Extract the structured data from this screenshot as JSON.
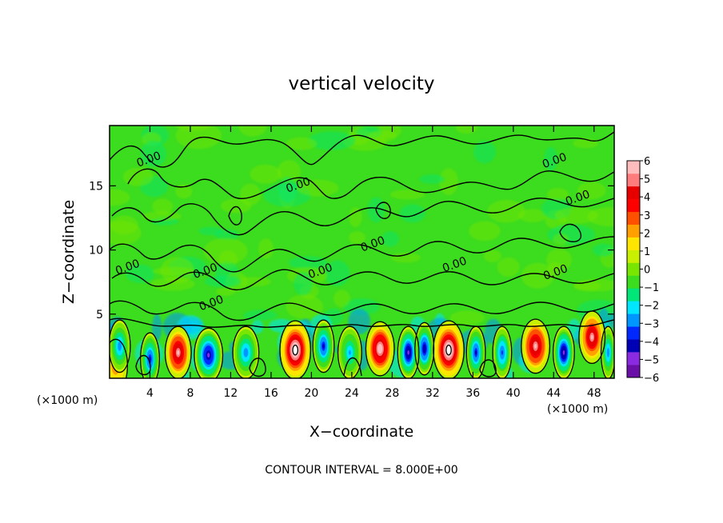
{
  "chart_data": {
    "type": "heatmap",
    "title": "vertical velocity",
    "xlabel": "X−coordinate",
    "ylabel": "Z−coordinate",
    "x_unit_label": "(×1000 m)",
    "y_unit_label": "(×1000 m)",
    "xlim": [
      0,
      50
    ],
    "ylim": [
      0,
      19.7
    ],
    "x_ticks": [
      4,
      8,
      12,
      16,
      20,
      24,
      28,
      32,
      36,
      40,
      44,
      48
    ],
    "y_ticks": [
      5,
      10,
      15
    ],
    "colorbar": {
      "range": [
        -6,
        6
      ],
      "ticks": [
        6,
        5,
        4,
        3,
        2,
        1,
        0,
        -1,
        -2,
        -3,
        -4,
        -5,
        -6
      ],
      "tick_labels": [
        "6",
        "5",
        "4",
        "3",
        "2",
        "1",
        "0",
        "−1",
        "−2",
        "−3",
        "−4",
        "−5",
        "−6"
      ],
      "colors": [
        "#6a0fa8",
        "#8a2be2",
        "#0000b4",
        "#0028ff",
        "#0096ff",
        "#00e6ff",
        "#00e678",
        "#3cdc1e",
        "#78e600",
        "#c8f000",
        "#ffe600",
        "#ffa000",
        "#ff5000",
        "#ff0000",
        "#e60000",
        "#ff7c7c",
        "#ffbcbc"
      ]
    },
    "background_value": 0.5,
    "cells": [
      {
        "x": 0.6,
        "z": 1.0,
        "w": 1.0,
        "max": 2.5
      },
      {
        "x": 1.0,
        "z": 2.5,
        "w": 0.9,
        "max": -3.0
      },
      {
        "x": 4.0,
        "z": 1.5,
        "w": 0.8,
        "max": -4.0
      },
      {
        "x": 6.8,
        "z": 2.0,
        "w": 1.1,
        "max": 5.6
      },
      {
        "x": 9.8,
        "z": 1.8,
        "w": 1.2,
        "max": -4.8
      },
      {
        "x": 13.5,
        "z": 2.0,
        "w": 1.1,
        "max": -3.0
      },
      {
        "x": 18.4,
        "z": 2.2,
        "w": 1.3,
        "max": 6.5
      },
      {
        "x": 21.2,
        "z": 2.5,
        "w": 0.9,
        "max": -4.0
      },
      {
        "x": 23.8,
        "z": 2.0,
        "w": 1.0,
        "max": -2.5
      },
      {
        "x": 26.8,
        "z": 2.3,
        "w": 1.2,
        "max": 6.0
      },
      {
        "x": 29.6,
        "z": 2.0,
        "w": 0.9,
        "max": -5.0
      },
      {
        "x": 31.2,
        "z": 2.3,
        "w": 0.8,
        "max": -4.5
      },
      {
        "x": 33.6,
        "z": 2.2,
        "w": 1.3,
        "max": 6.8
      },
      {
        "x": 36.3,
        "z": 2.0,
        "w": 0.8,
        "max": -4.0
      },
      {
        "x": 38.9,
        "z": 2.0,
        "w": 0.8,
        "max": -3.5
      },
      {
        "x": 42.2,
        "z": 2.5,
        "w": 1.2,
        "max": 5.6
      },
      {
        "x": 45.0,
        "z": 2.0,
        "w": 0.9,
        "max": -5.0
      },
      {
        "x": 47.8,
        "z": 3.2,
        "w": 1.1,
        "max": 5.4
      },
      {
        "x": 49.4,
        "z": 2.0,
        "w": 0.6,
        "max": -3.0
      }
    ],
    "contour_levels": [
      0
    ],
    "contour_labels": [
      {
        "text": "0.00",
        "x": 4.0,
        "z": 16.8
      },
      {
        "text": "0.00",
        "x": 18.8,
        "z": 14.8
      },
      {
        "text": "0.00",
        "x": 44.2,
        "z": 16.7
      },
      {
        "text": "0.00",
        "x": 46.5,
        "z": 13.8
      },
      {
        "text": "0.00",
        "x": 1.9,
        "z": 8.4
      },
      {
        "text": "0.00",
        "x": 9.6,
        "z": 8.1
      },
      {
        "text": "0.00",
        "x": 26.2,
        "z": 10.2
      },
      {
        "text": "0.00",
        "x": 21.0,
        "z": 8.1
      },
      {
        "text": "0.00",
        "x": 34.3,
        "z": 8.6
      },
      {
        "text": "0.00",
        "x": 44.3,
        "z": 8.0
      },
      {
        "text": "0.00",
        "x": 10.2,
        "z": 5.6
      }
    ],
    "note": "CONTOUR INTERVAL = 8.000E+00"
  }
}
